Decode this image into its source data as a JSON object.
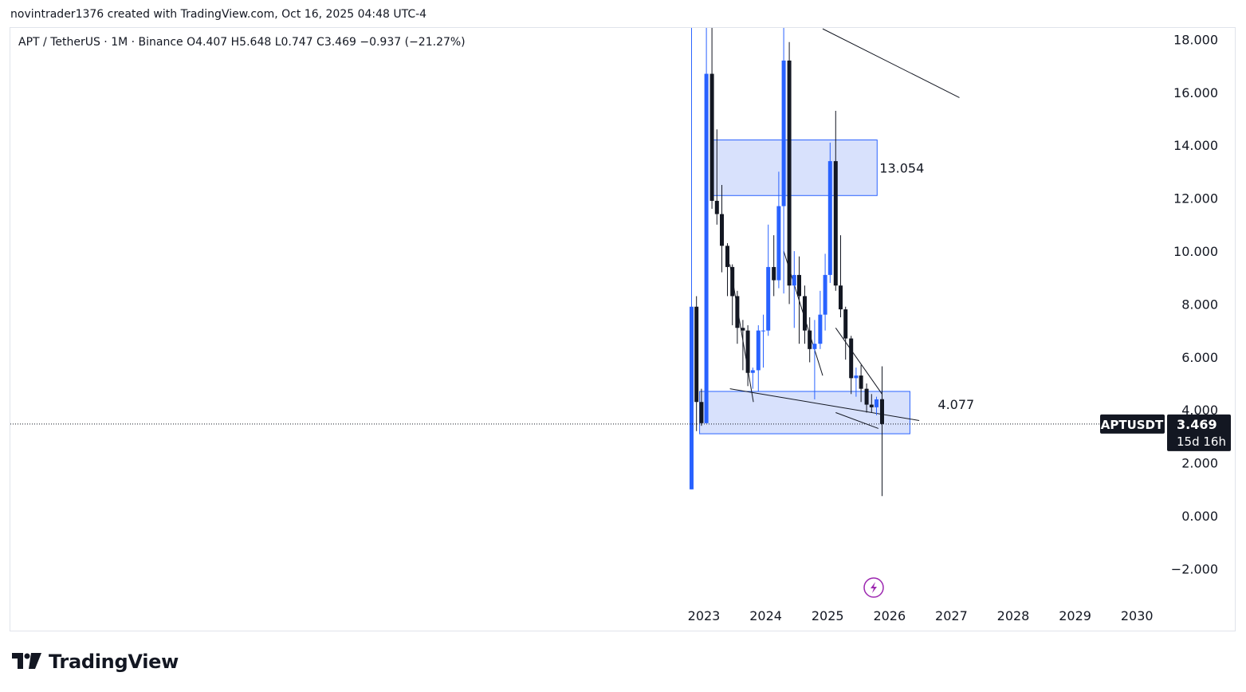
{
  "header": {
    "attribution": "novintrader1376 created with TradingView.com, Oct 16, 2025 04:48 UTC-4"
  },
  "legend": {
    "text": "APT / TetherUS · 1M · Binance  O4.407  H5.648  L0.747  C3.469  −0.937 (−21.27%)"
  },
  "brand": {
    "name": "TradingView"
  },
  "colors": {
    "up": "#2962ff",
    "down": "#131722",
    "zone_fill": "#d1dcfb",
    "zone_border": "#2962ff",
    "text": "#131722"
  },
  "chart_data": {
    "type": "candlestick",
    "symbol": "APT / TetherUS",
    "interval": "1M",
    "exchange": "Binance",
    "ohlc": {
      "open": 4.407,
      "high": 5.648,
      "low": 0.747,
      "close": 3.469,
      "change": -0.937,
      "change_pct": -21.27
    },
    "price_axis": {
      "ticks": [
        18,
        16,
        14,
        12,
        10,
        8,
        6,
        4,
        2,
        0,
        -2
      ],
      "tick_labels": [
        "18.000",
        "16.000",
        "14.000",
        "12.000",
        "10.000",
        "8.000",
        "6.000",
        "4.000",
        "2.000",
        "0.000",
        "−2.000"
      ],
      "ylim": [
        -2.8,
        18.5
      ]
    },
    "time_axis": {
      "years": [
        2023,
        2024,
        2025,
        2026,
        2027,
        2028,
        2029,
        2030
      ],
      "tick_labels": [
        "2023",
        "2024",
        "2025",
        "2026",
        "2027",
        "2028",
        "2029",
        "2030"
      ]
    },
    "last_price": {
      "symbol_label": "APTUSDT",
      "value_label": "3.469",
      "countdown": "15d 16h",
      "value": 3.469
    },
    "candles": [
      {
        "t": 2022.8,
        "o": 1.0,
        "h": 18.5,
        "l": 1.0,
        "c": 7.9
      },
      {
        "t": 2022.88,
        "o": 7.9,
        "h": 8.3,
        "l": 3.2,
        "c": 4.3
      },
      {
        "t": 2022.96,
        "o": 4.3,
        "h": 4.8,
        "l": 3.4,
        "c": 3.5
      },
      {
        "t": 2023.04,
        "o": 3.5,
        "h": 18.5,
        "l": 3.5,
        "c": 16.7
      },
      {
        "t": 2023.13,
        "o": 16.7,
        "h": 18.5,
        "l": 11.6,
        "c": 11.9
      },
      {
        "t": 2023.21,
        "o": 11.9,
        "h": 14.6,
        "l": 11.0,
        "c": 11.4
      },
      {
        "t": 2023.29,
        "o": 11.4,
        "h": 12.5,
        "l": 9.2,
        "c": 10.2
      },
      {
        "t": 2023.38,
        "o": 10.2,
        "h": 10.3,
        "l": 8.3,
        "c": 9.4
      },
      {
        "t": 2023.46,
        "o": 9.4,
        "h": 9.5,
        "l": 7.2,
        "c": 8.3
      },
      {
        "t": 2023.54,
        "o": 8.3,
        "h": 8.5,
        "l": 6.5,
        "c": 7.1
      },
      {
        "t": 2023.63,
        "o": 7.1,
        "h": 7.4,
        "l": 5.5,
        "c": 7.0
      },
      {
        "t": 2023.71,
        "o": 7.0,
        "h": 7.2,
        "l": 4.9,
        "c": 5.4
      },
      {
        "t": 2023.79,
        "o": 5.4,
        "h": 5.6,
        "l": 4.8,
        "c": 5.5
      },
      {
        "t": 2023.88,
        "o": 5.5,
        "h": 7.2,
        "l": 4.7,
        "c": 7.0
      },
      {
        "t": 2023.96,
        "o": 7.0,
        "h": 7.6,
        "l": 5.6,
        "c": 7.0
      },
      {
        "t": 2024.04,
        "o": 7.0,
        "h": 11.0,
        "l": 6.8,
        "c": 9.4
      },
      {
        "t": 2024.13,
        "o": 9.4,
        "h": 10.6,
        "l": 8.3,
        "c": 8.9
      },
      {
        "t": 2024.21,
        "o": 8.9,
        "h": 13.0,
        "l": 8.6,
        "c": 11.7
      },
      {
        "t": 2024.29,
        "o": 11.7,
        "h": 18.5,
        "l": 8.4,
        "c": 17.2
      },
      {
        "t": 2024.38,
        "o": 17.2,
        "h": 17.9,
        "l": 8.0,
        "c": 8.7
      },
      {
        "t": 2024.46,
        "o": 8.7,
        "h": 10.0,
        "l": 7.1,
        "c": 9.1
      },
      {
        "t": 2024.54,
        "o": 9.1,
        "h": 9.8,
        "l": 6.5,
        "c": 8.3
      },
      {
        "t": 2024.63,
        "o": 8.3,
        "h": 8.7,
        "l": 6.5,
        "c": 7.0
      },
      {
        "t": 2024.71,
        "o": 7.0,
        "h": 7.5,
        "l": 5.8,
        "c": 6.3
      },
      {
        "t": 2024.79,
        "o": 6.3,
        "h": 7.4,
        "l": 4.4,
        "c": 6.5
      },
      {
        "t": 2024.88,
        "o": 6.5,
        "h": 8.5,
        "l": 6.3,
        "c": 7.6
      },
      {
        "t": 2024.96,
        "o": 7.6,
        "h": 9.9,
        "l": 7.0,
        "c": 9.1
      },
      {
        "t": 2025.04,
        "o": 9.1,
        "h": 14.1,
        "l": 8.8,
        "c": 13.4
      },
      {
        "t": 2025.13,
        "o": 13.4,
        "h": 15.3,
        "l": 8.5,
        "c": 8.7
      },
      {
        "t": 2025.21,
        "o": 8.7,
        "h": 10.6,
        "l": 7.5,
        "c": 7.8
      },
      {
        "t": 2025.29,
        "o": 7.8,
        "h": 7.9,
        "l": 5.9,
        "c": 6.7
      },
      {
        "t": 2025.38,
        "o": 6.7,
        "h": 6.8,
        "l": 4.6,
        "c": 5.2
      },
      {
        "t": 2025.46,
        "o": 5.2,
        "h": 5.6,
        "l": 4.5,
        "c": 5.3
      },
      {
        "t": 2025.54,
        "o": 5.3,
        "h": 5.7,
        "l": 4.3,
        "c": 4.8
      },
      {
        "t": 2025.63,
        "o": 4.8,
        "h": 5.0,
        "l": 3.9,
        "c": 4.2
      },
      {
        "t": 2025.71,
        "o": 4.2,
        "h": 4.6,
        "l": 3.9,
        "c": 4.1
      },
      {
        "t": 2025.79,
        "o": 4.1,
        "h": 4.5,
        "l": 3.8,
        "c": 4.4
      },
      {
        "t": 2025.88,
        "o": 4.407,
        "h": 5.648,
        "l": 0.747,
        "c": 3.469
      }
    ],
    "zones": [
      {
        "label": "13.054",
        "top": 14.2,
        "bottom": 12.1,
        "t_start": 2023.12,
        "t_end": 2025.8
      },
      {
        "label": "4.077",
        "top": 4.7,
        "bottom": 3.1,
        "t_start": 2022.93,
        "t_end": 2026.33
      }
    ],
    "trendlines": [
      {
        "t1": 2024.92,
        "p1": 18.4,
        "t2": 2027.13,
        "p2": 15.8
      },
      {
        "t1": 2023.42,
        "p1": 9.5,
        "t2": 2023.8,
        "p2": 4.3
      },
      {
        "t1": 2024.29,
        "p1": 10.0,
        "t2": 2024.92,
        "p2": 5.3
      },
      {
        "t1": 2025.13,
        "p1": 7.1,
        "t2": 2025.88,
        "p2": 4.6
      },
      {
        "t1": 2023.42,
        "p1": 4.8,
        "t2": 2026.48,
        "p2": 3.6
      },
      {
        "t1": 2025.13,
        "p1": 3.9,
        "t2": 2025.82,
        "p2": 3.3
      }
    ]
  }
}
